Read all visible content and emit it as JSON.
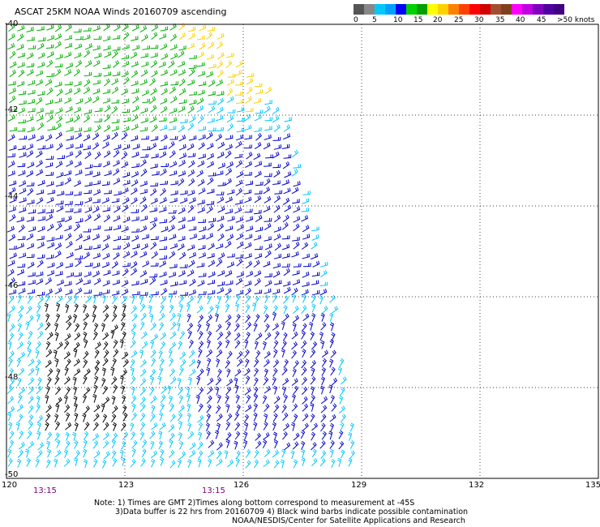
{
  "title": "ASCAT 25KM NOAA Winds 20160709 ascending",
  "colorbar": {
    "labels": [
      "0",
      "5",
      "10",
      "15",
      "20",
      "25",
      "30",
      "35",
      "40",
      "45",
      ">50 knots"
    ],
    "colors": [
      "#555555",
      "#888888",
      "#00c8ff",
      "#00a0ff",
      "#0000ff",
      "#00d000",
      "#00a000",
      "#ffff00",
      "#ffd000",
      "#ff8000",
      "#ff4000",
      "#ff0000",
      "#d00000",
      "#a05030",
      "#804020",
      "#ff00ff",
      "#c000e0",
      "#8000c0",
      "#5000a0",
      "#400080"
    ]
  },
  "map": {
    "lat_labels": [
      "-40",
      "-42",
      "-44",
      "-46",
      "-48",
      "-50"
    ],
    "lon_labels": [
      "120",
      "123",
      "126",
      "129",
      "132",
      "135"
    ],
    "time_labels": [
      "13:15",
      "13:15"
    ],
    "lon_range": [
      120,
      135
    ],
    "lat_range": [
      -50,
      -40
    ],
    "grid": "dotted",
    "swath_boundary": [
      [
        120,
        -40
      ],
      [
        125,
        -40
      ],
      [
        127,
        -42
      ],
      [
        128.2,
        -46
      ],
      [
        128.9,
        -50
      ],
      [
        120,
        -50
      ]
    ],
    "wind_regions": [
      {
        "color": "#00b000",
        "region": [
          [
            120,
            -40
          ],
          [
            126,
            -40
          ],
          [
            126.5,
            -41
          ],
          [
            123,
            -42.8
          ],
          [
            120,
            -42.5
          ]
        ]
      },
      {
        "color": "#ffd000",
        "region": [
          [
            124,
            -40
          ],
          [
            125,
            -40
          ],
          [
            126.8,
            -41.5
          ],
          [
            126,
            -42
          ],
          [
            125,
            -41
          ]
        ]
      },
      {
        "color": "#0000cc",
        "region": [
          [
            120,
            -42.5
          ],
          [
            127,
            -42.5
          ],
          [
            128,
            -46
          ],
          [
            120,
            -46
          ]
        ]
      },
      {
        "color": "#00c8ff",
        "region": [
          [
            120,
            -46
          ],
          [
            128.2,
            -46
          ],
          [
            128.9,
            -50
          ],
          [
            120,
            -50
          ]
        ]
      },
      {
        "color": "#000000",
        "region": [
          [
            121,
            -46.2
          ],
          [
            123,
            -46.2
          ],
          [
            123,
            -49
          ],
          [
            121,
            -49
          ]
        ]
      },
      {
        "color": "#0000cc",
        "region": [
          [
            124.5,
            -46.5
          ],
          [
            128.2,
            -46.5
          ],
          [
            128.5,
            -49.5
          ],
          [
            125,
            -49.5
          ]
        ]
      }
    ]
  },
  "notes": [
    "Note: 1) Times are GMT 2)Times along bottom correspond to measurement at -45S",
    "3)Data buffer is 22 hrs from 20160709 4) Black wind barbs indicate possible contamination",
    "NOAA/NESDIS/Center for Satellite Applications and Research"
  ]
}
